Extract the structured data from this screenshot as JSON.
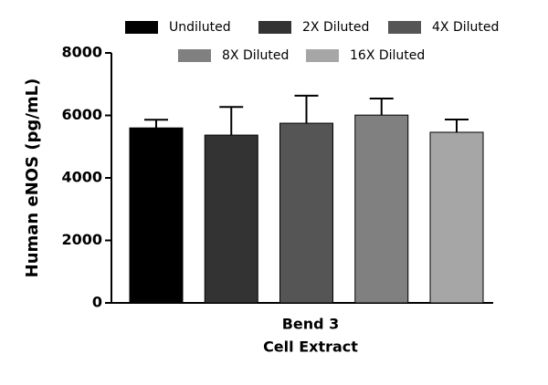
{
  "chart_data": {
    "type": "bar",
    "ylabel": "Human eNOS (pg/mL)",
    "categories": [
      [
        "Bend 3",
        "Cell Extract"
      ]
    ],
    "series": [
      {
        "name": "Undiluted",
        "color": "#000000",
        "values": [
          5600
        ],
        "errors": [
          260
        ]
      },
      {
        "name": "2X Diluted",
        "color": "#333333",
        "values": [
          5370
        ],
        "errors": [
          900
        ]
      },
      {
        "name": "4X Diluted",
        "color": "#555555",
        "values": [
          5750
        ],
        "errors": [
          880
        ]
      },
      {
        "name": "8X Diluted",
        "color": "#808080",
        "values": [
          6010
        ],
        "errors": [
          530
        ]
      },
      {
        "name": "16X Diluted",
        "color": "#a6a6a6",
        "values": [
          5460
        ],
        "errors": [
          410
        ]
      }
    ],
    "ylim": [
      0,
      8000
    ],
    "yticks": [
      0,
      2000,
      4000,
      6000,
      8000
    ],
    "grid": false
  }
}
